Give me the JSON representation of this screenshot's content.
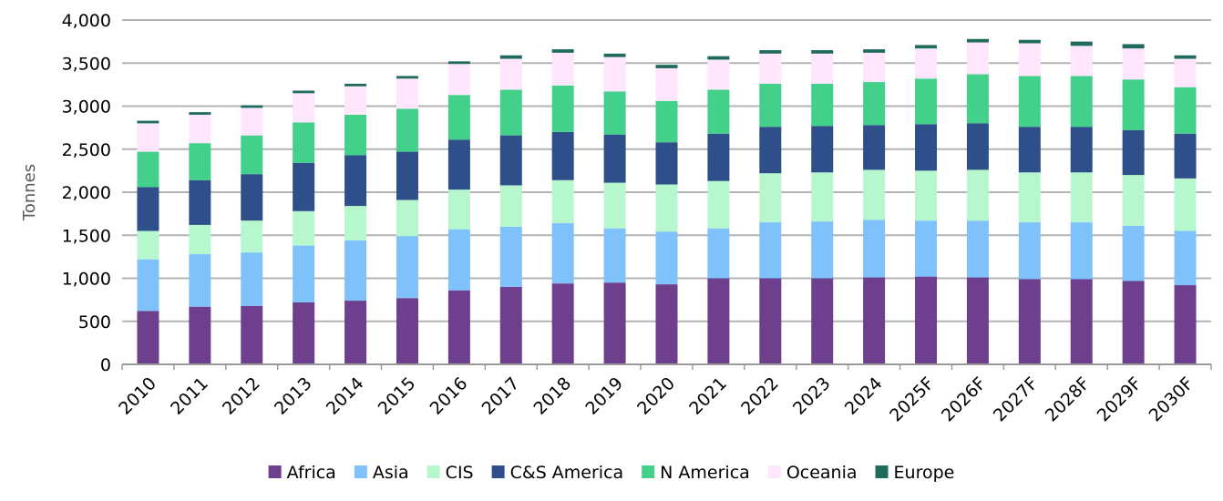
{
  "chart_data": {
    "type": "bar",
    "stacked": true,
    "title": "",
    "xlabel": "",
    "ylabel": "Tonnes",
    "ylim": [
      0,
      4000
    ],
    "yticks": [
      0,
      500,
      1000,
      1500,
      2000,
      2500,
      3000,
      3500,
      4000
    ],
    "ytick_labels": [
      "0",
      "500",
      "1,000",
      "1,500",
      "2,000",
      "2,500",
      "3,000",
      "3,500",
      "4,000"
    ],
    "grid": true,
    "legend_position": "bottom",
    "categories": [
      "2010",
      "2011",
      "2012",
      "2013",
      "2014",
      "2015",
      "2016",
      "2017",
      "2018",
      "2019",
      "2020",
      "2021",
      "2022",
      "2023",
      "2024",
      "2025F",
      "2026F",
      "2027F",
      "2028F",
      "2029F",
      "2030F"
    ],
    "series": [
      {
        "name": "Africa",
        "color": "#6E3F8C",
        "values": [
          620,
          670,
          680,
          720,
          740,
          770,
          860,
          900,
          940,
          950,
          930,
          1000,
          1000,
          1000,
          1010,
          1020,
          1010,
          990,
          990,
          970,
          920
        ]
      },
      {
        "name": "Asia",
        "color": "#7FC2FB",
        "values": [
          600,
          610,
          620,
          660,
          700,
          720,
          710,
          700,
          700,
          630,
          610,
          580,
          650,
          660,
          670,
          650,
          660,
          660,
          660,
          640,
          630
        ]
      },
      {
        "name": "CIS",
        "color": "#B7F7CE",
        "values": [
          330,
          340,
          370,
          400,
          400,
          420,
          460,
          480,
          500,
          530,
          550,
          550,
          570,
          570,
          580,
          580,
          590,
          580,
          580,
          590,
          610
        ]
      },
      {
        "name": "C&S America",
        "color": "#2E4F8A",
        "values": [
          510,
          520,
          540,
          560,
          590,
          560,
          580,
          580,
          560,
          560,
          490,
          550,
          540,
          540,
          520,
          540,
          540,
          530,
          530,
          520,
          520
        ]
      },
      {
        "name": "N America",
        "color": "#43D08B",
        "values": [
          410,
          430,
          450,
          470,
          470,
          500,
          520,
          530,
          540,
          500,
          480,
          510,
          500,
          490,
          500,
          530,
          570,
          590,
          590,
          590,
          540
        ]
      },
      {
        "name": "Oceania",
        "color": "#FFE6FD",
        "values": [
          330,
          330,
          320,
          340,
          330,
          350,
          360,
          360,
          380,
          400,
          380,
          350,
          350,
          350,
          340,
          350,
          370,
          380,
          350,
          360,
          330
        ]
      },
      {
        "name": "Europe",
        "color": "#1F6B5C",
        "values": [
          30,
          30,
          30,
          30,
          30,
          30,
          30,
          40,
          40,
          40,
          40,
          40,
          40,
          40,
          40,
          40,
          40,
          40,
          50,
          50,
          40
        ]
      }
    ]
  }
}
